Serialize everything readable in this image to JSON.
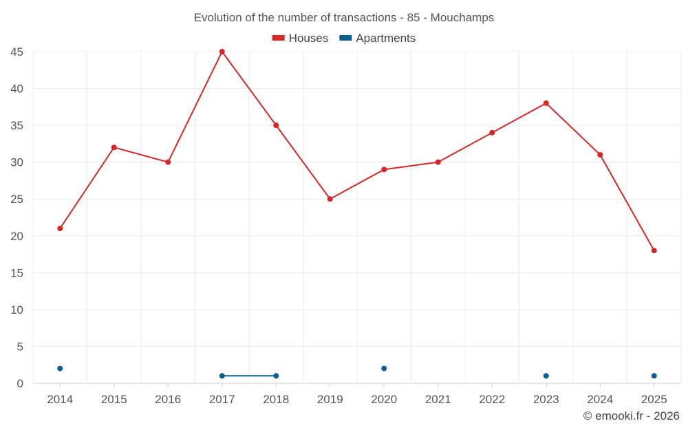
{
  "chart_data": {
    "type": "line",
    "title": "Evolution of the number of transactions - 85 - Mouchamps",
    "categories": [
      "2014",
      "2015",
      "2016",
      "2017",
      "2018",
      "2019",
      "2020",
      "2021",
      "2022",
      "2023",
      "2024",
      "2025"
    ],
    "ylim": [
      0,
      45
    ],
    "yticks": [
      0,
      5,
      10,
      15,
      20,
      25,
      30,
      35,
      40,
      45
    ],
    "xlabel": "",
    "ylabel": "",
    "grid": true,
    "legend_position": "top-center",
    "series": [
      {
        "name": "Houses",
        "color": "#d62728",
        "values": [
          21,
          32,
          30,
          45,
          35,
          25,
          29,
          30,
          34,
          38,
          31,
          18
        ]
      },
      {
        "name": "Apartments",
        "color": "#0b5f8f",
        "values": [
          2,
          null,
          null,
          1,
          1,
          null,
          2,
          null,
          null,
          1,
          null,
          1
        ]
      }
    ]
  },
  "credit": "© emooki.fr - 2026"
}
